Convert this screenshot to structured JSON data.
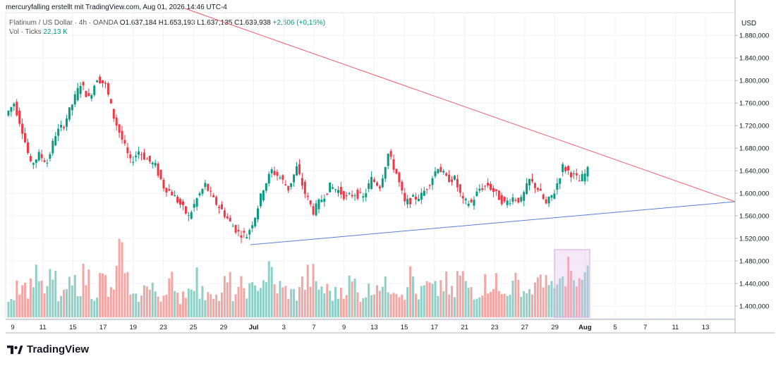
{
  "caption": "mercuryfalling erstellt mit TradingView.com, Aug 01, 2026 14:46 UTC-4",
  "legend": {
    "symbol": "Platinum / US Dollar · 4h · OANDA",
    "open": "O1.637,184",
    "high": "H1.653,193",
    "low": "L1.637,135",
    "close": "C1.639,938",
    "change": "+2,506 (+0,15%)",
    "vol_label": "Vol · Ticks",
    "vol_value": "22,13 K"
  },
  "brand": {
    "name": "TradingView"
  },
  "colors": {
    "up": "#089981",
    "down": "#f23645",
    "vol_up": "#8fcfc6",
    "vol_down": "#f2a7a5",
    "resistance": "#f05d6b",
    "support": "#5b7fd8",
    "highlight": "#e1bee7"
  },
  "chart_data": {
    "type": "candlestick",
    "title": "Platinum / US Dollar · 4h · OANDA",
    "currency": "USD",
    "ylim": [
      1380000,
      1920000
    ],
    "yticks": [
      1400000,
      1440000,
      1480000,
      1520000,
      1560000,
      1600000,
      1640000,
      1680000,
      1720000,
      1760000,
      1800000,
      1840000,
      1880000
    ],
    "ytick_labels": [
      "1.400,000",
      "1.440,000",
      "1.480,000",
      "1.520,000",
      "1.560,000",
      "1.600,000",
      "1.640,000",
      "1.680,000",
      "1.720,000",
      "1.760,000",
      "1.800,000",
      "1.840,000",
      "1.880,000"
    ],
    "xticks": [
      "9",
      "11",
      "15",
      "17",
      "19",
      "23",
      "25",
      "29",
      "Jul",
      "3",
      "7",
      "9",
      "13",
      "15",
      "17",
      "21",
      "23",
      "27",
      "29",
      "Aug",
      "5",
      "7",
      "11",
      "13"
    ],
    "close_path": [
      [
        0,
        1738000
      ],
      [
        1,
        1760000
      ],
      [
        2,
        1712000
      ],
      [
        3,
        1650000
      ],
      [
        4,
        1668000
      ],
      [
        5,
        1655000
      ],
      [
        6,
        1705000
      ],
      [
        7,
        1722000
      ],
      [
        8,
        1758000
      ],
      [
        9,
        1795000
      ],
      [
        10,
        1768000
      ],
      [
        11,
        1805000
      ],
      [
        12,
        1792000
      ],
      [
        13,
        1735000
      ],
      [
        14,
        1695000
      ],
      [
        15,
        1655000
      ],
      [
        16,
        1675000
      ],
      [
        17,
        1660000
      ],
      [
        18,
        1648000
      ],
      [
        19,
        1612000
      ],
      [
        20,
        1600000
      ],
      [
        21,
        1580000
      ],
      [
        22,
        1558000
      ],
      [
        23,
        1590000
      ],
      [
        24,
        1615000
      ],
      [
        25,
        1588000
      ],
      [
        26,
        1570000
      ],
      [
        27,
        1548000
      ],
      [
        28,
        1530000
      ],
      [
        29,
        1525000
      ],
      [
        30,
        1560000
      ],
      [
        31,
        1610000
      ],
      [
        32,
        1640000
      ],
      [
        33,
        1628000
      ],
      [
        34,
        1608000
      ],
      [
        35,
        1645000
      ],
      [
        36,
        1600000
      ],
      [
        37,
        1568000
      ],
      [
        38,
        1590000
      ],
      [
        39,
        1612000
      ],
      [
        40,
        1605000
      ],
      [
        41,
        1592000
      ],
      [
        42,
        1600000
      ],
      [
        43,
        1592000
      ],
      [
        44,
        1625000
      ],
      [
        45,
        1613000
      ],
      [
        46,
        1670000
      ],
      [
        47,
        1635000
      ],
      [
        48,
        1582000
      ],
      [
        49,
        1590000
      ],
      [
        50,
        1596000
      ],
      [
        51,
        1620000
      ],
      [
        52,
        1648000
      ],
      [
        53,
        1626000
      ],
      [
        54,
        1625000
      ],
      [
        55,
        1585000
      ],
      [
        56,
        1583000
      ],
      [
        57,
        1608000
      ],
      [
        58,
        1615000
      ],
      [
        59,
        1598000
      ],
      [
        60,
        1582000
      ],
      [
        61,
        1592000
      ],
      [
        62,
        1587000
      ],
      [
        63,
        1623000
      ],
      [
        64,
        1608000
      ],
      [
        65,
        1580000
      ],
      [
        66,
        1603000
      ],
      [
        67,
        1647000
      ],
      [
        68,
        1635000
      ],
      [
        69,
        1622000
      ],
      [
        70,
        1640000
      ]
    ],
    "volume_relative": [
      0.35,
      0.55,
      0.45,
      0.7,
      0.4,
      0.55,
      0.3,
      0.45,
      0.5,
      0.6,
      0.4,
      0.55,
      0.35,
      0.95,
      0.5,
      0.3,
      0.45,
      0.4,
      0.35,
      0.55,
      0.3,
      0.4,
      0.6,
      0.35,
      0.45,
      0.3,
      0.5,
      0.35,
      0.45,
      0.4,
      0.55,
      0.65,
      0.45,
      0.4,
      0.35,
      0.5,
      0.6,
      0.45,
      0.4,
      0.35,
      0.45,
      0.5,
      0.35,
      0.4,
      0.55,
      0.45,
      0.5,
      0.4,
      0.6,
      0.35,
      0.45,
      0.4,
      0.5,
      0.35,
      0.6,
      0.45,
      0.4,
      0.5,
      0.55,
      0.35,
      0.45,
      0.5,
      0.4,
      0.45,
      0.65,
      0.4,
      0.5,
      0.75,
      0.45,
      0.7,
      0.3
    ],
    "resistance_line": {
      "from": [
        "start",
        1930000
      ],
      "to": [
        "right-edge",
        1592000
      ]
    },
    "support_line": {
      "from": [
        "Jul",
        1518000
      ],
      "to": [
        "right-edge",
        1592000
      ]
    },
    "highlight_volume_box": true
  }
}
